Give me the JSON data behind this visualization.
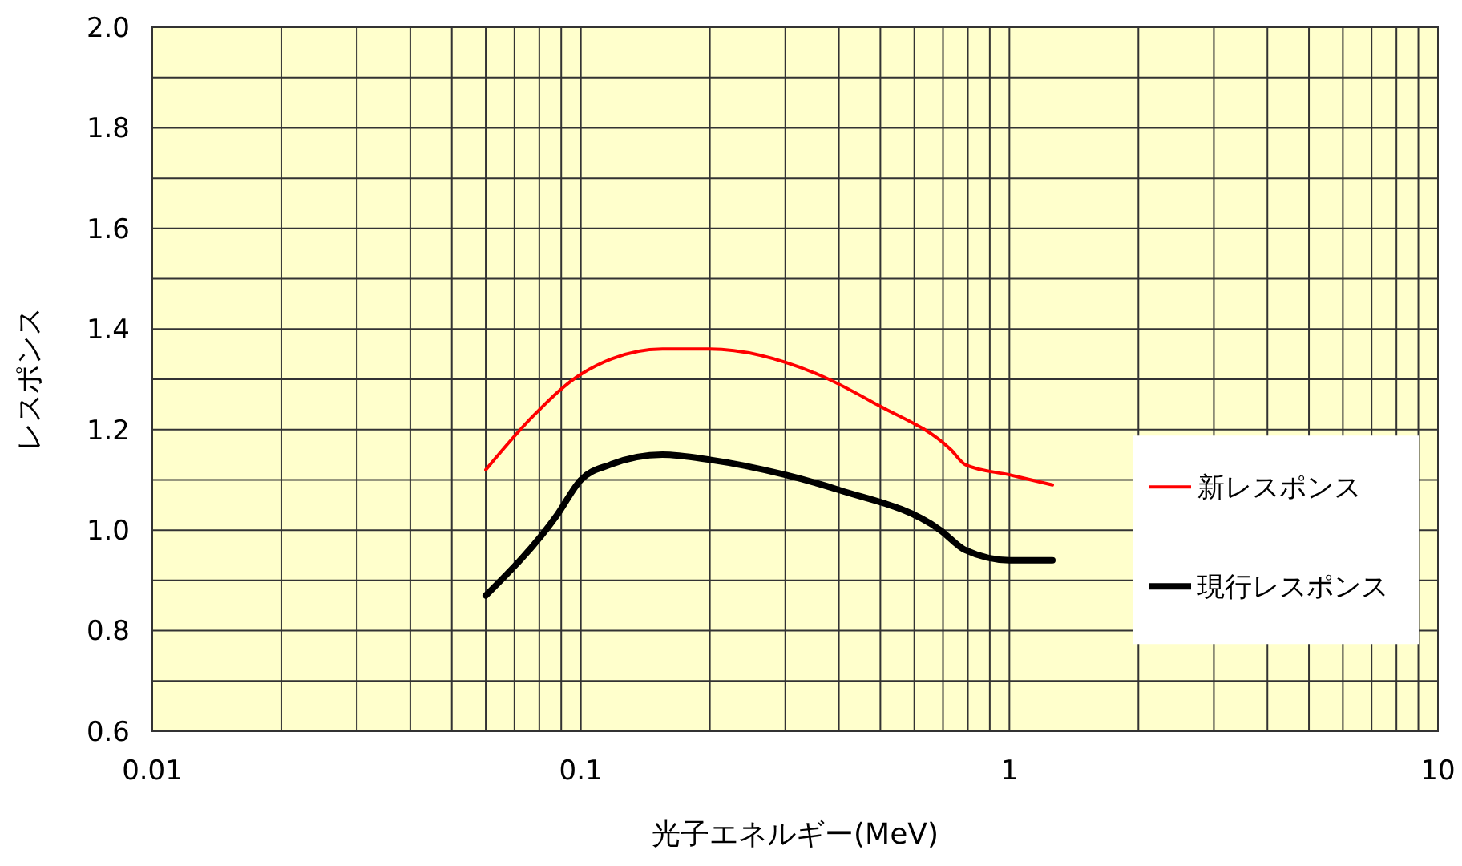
{
  "chart_data": {
    "type": "line",
    "xlabel": "光子エネルギー(MeV)",
    "ylabel": "レスポンス",
    "log": "x",
    "xlim": [
      0.01,
      10
    ],
    "ylim": [
      0.6,
      2.0
    ],
    "xticks": [
      0.01,
      {
        "value": 0.02,
        "label": null
      },
      {
        "value": 0.03,
        "label": null
      },
      {
        "value": 0.04,
        "label": null
      },
      {
        "value": 0.05,
        "label": null
      },
      {
        "value": 0.06,
        "label": null
      },
      {
        "value": 0.07,
        "label": null
      },
      {
        "value": 0.08,
        "label": null
      },
      {
        "value": 0.09,
        "label": null
      },
      0.1,
      {
        "value": 0.2,
        "label": null
      },
      {
        "value": 0.3,
        "label": null
      },
      {
        "value": 0.4,
        "label": null
      },
      {
        "value": 0.5,
        "label": null
      },
      {
        "value": 0.6,
        "label": null
      },
      {
        "value": 0.7,
        "label": null
      },
      {
        "value": 0.8,
        "label": null
      },
      {
        "value": 0.9,
        "label": null
      },
      1,
      {
        "value": 2,
        "label": null
      },
      {
        "value": 3,
        "label": null
      },
      {
        "value": 4,
        "label": null
      },
      {
        "value": 5,
        "label": null
      },
      {
        "value": 6,
        "label": null
      },
      {
        "value": 7,
        "label": null
      },
      {
        "value": 8,
        "label": null
      },
      {
        "value": 9,
        "label": null
      },
      10
    ],
    "yticks": [
      {
        "value": 0.6,
        "label": "0.6"
      },
      {
        "value": 0.7,
        "label": null
      },
      {
        "value": 0.8,
        "label": "0.8"
      },
      {
        "value": 0.9,
        "label": null
      },
      {
        "value": 1.0,
        "label": "1.0"
      },
      {
        "value": 1.1,
        "label": null
      },
      {
        "value": 1.2,
        "label": "1.2"
      },
      {
        "value": 1.3,
        "label": null
      },
      {
        "value": 1.4,
        "label": "1.4"
      },
      {
        "value": 1.5,
        "label": null
      },
      {
        "value": 1.6,
        "label": "1.6"
      },
      {
        "value": 1.7,
        "label": null
      },
      {
        "value": 1.8,
        "label": "1.8"
      },
      {
        "value": 1.9,
        "label": null
      },
      {
        "value": 2.0,
        "label": "2.0"
      }
    ],
    "grid": true,
    "legend": "right",
    "marker": "none",
    "series": [
      {
        "name": "新レスポンス",
        "color": "#ff0000",
        "x": [
          0.06,
          0.078,
          0.1,
          0.155,
          0.2,
          0.357,
          0.49,
          0.73,
          0.79,
          1.0,
          1.26
        ],
        "values": [
          1.12,
          1.23,
          1.31,
          1.36,
          1.36,
          1.31,
          1.25,
          1.16,
          1.13,
          1.11,
          1.09
        ]
      },
      {
        "name": "現行レスポンス",
        "color": "#000000",
        "x": [
          0.06,
          0.088,
          0.1,
          0.117,
          0.155,
          0.2,
          0.3,
          0.4,
          0.69,
          0.79,
          1.0,
          1.26
        ],
        "values": [
          0.87,
          1.03,
          1.1,
          1.13,
          1.15,
          1.14,
          1.11,
          1.08,
          1.0,
          0.96,
          0.94,
          0.94
        ]
      }
    ]
  }
}
